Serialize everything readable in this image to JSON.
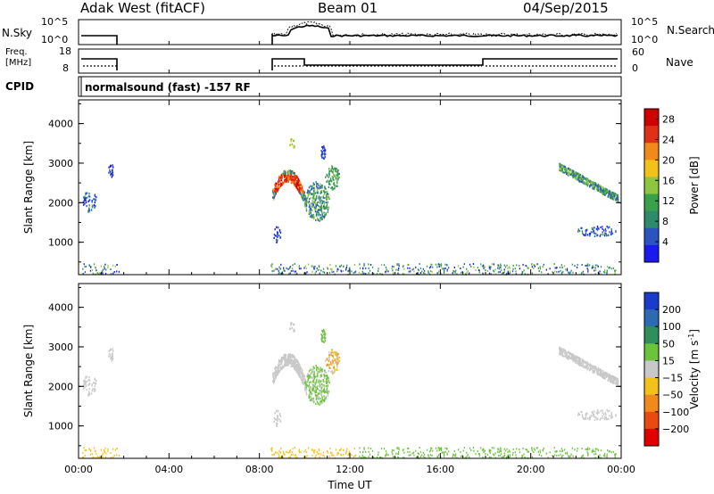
{
  "header": {
    "station": "Adak West (fitACF)",
    "beam": "Beam 01",
    "date": "04/Sep/2015"
  },
  "noise_panel": {
    "left_label": "N.Sky",
    "right_label": "N.Search",
    "left_ticks": [
      "10^5",
      "10^0"
    ],
    "right_ticks": [
      "10^5",
      "10^0"
    ]
  },
  "freq_panel": {
    "left_label": "Freq.",
    "left_unit": "[MHz]",
    "left_ticks": [
      "18",
      "8"
    ],
    "right_label": "Nave",
    "right_ticks": [
      "60",
      "0"
    ]
  },
  "cpid_panel": {
    "label": "CPID",
    "text": "normalsound (fast) -157 RF"
  },
  "chart_data": [
    {
      "type": "heatmap",
      "title": "",
      "xlabel": "",
      "ylabel": "Slant Range [km]",
      "x_ticks": [
        "00:00",
        "04:00",
        "08:00",
        "12:00",
        "16:00",
        "20:00",
        "00:00"
      ],
      "x_range_hours": [
        0,
        24
      ],
      "y_ticks": [
        1000,
        2000,
        3000,
        4000
      ],
      "ylim": [
        180,
        4600
      ],
      "colorbar": {
        "label": "Power [dB]",
        "ticks": [
          4,
          8,
          12,
          16,
          20,
          24,
          28
        ],
        "range": [
          0,
          30
        ],
        "colors": [
          "#1a1aee",
          "#2a55c0",
          "#2d8a6a",
          "#3aa04a",
          "#8dc63f",
          "#f2c21a",
          "#f08a1a",
          "#e03018",
          "#d10000"
        ]
      }
    },
    {
      "type": "heatmap",
      "title": "",
      "xlabel": "Time UT",
      "ylabel": "Slant Range [km]",
      "x_ticks": [
        "00:00",
        "04:00",
        "08:00",
        "12:00",
        "16:00",
        "20:00",
        "00:00"
      ],
      "x_range_hours": [
        0,
        24
      ],
      "y_ticks": [
        1000,
        2000,
        3000,
        4000
      ],
      "ylim": [
        180,
        4600
      ],
      "colorbar": {
        "label": "Velocity [m s^-1]",
        "ticks": [
          200,
          100,
          50,
          15,
          -15,
          -50,
          -100,
          -200
        ],
        "colors": [
          "#1a3ccc",
          "#2e6ab0",
          "#2e8f5a",
          "#6cc43a",
          "#c8c8c8",
          "#f2c21a",
          "#f08a1a",
          "#e84a10",
          "#e00000"
        ]
      }
    }
  ]
}
